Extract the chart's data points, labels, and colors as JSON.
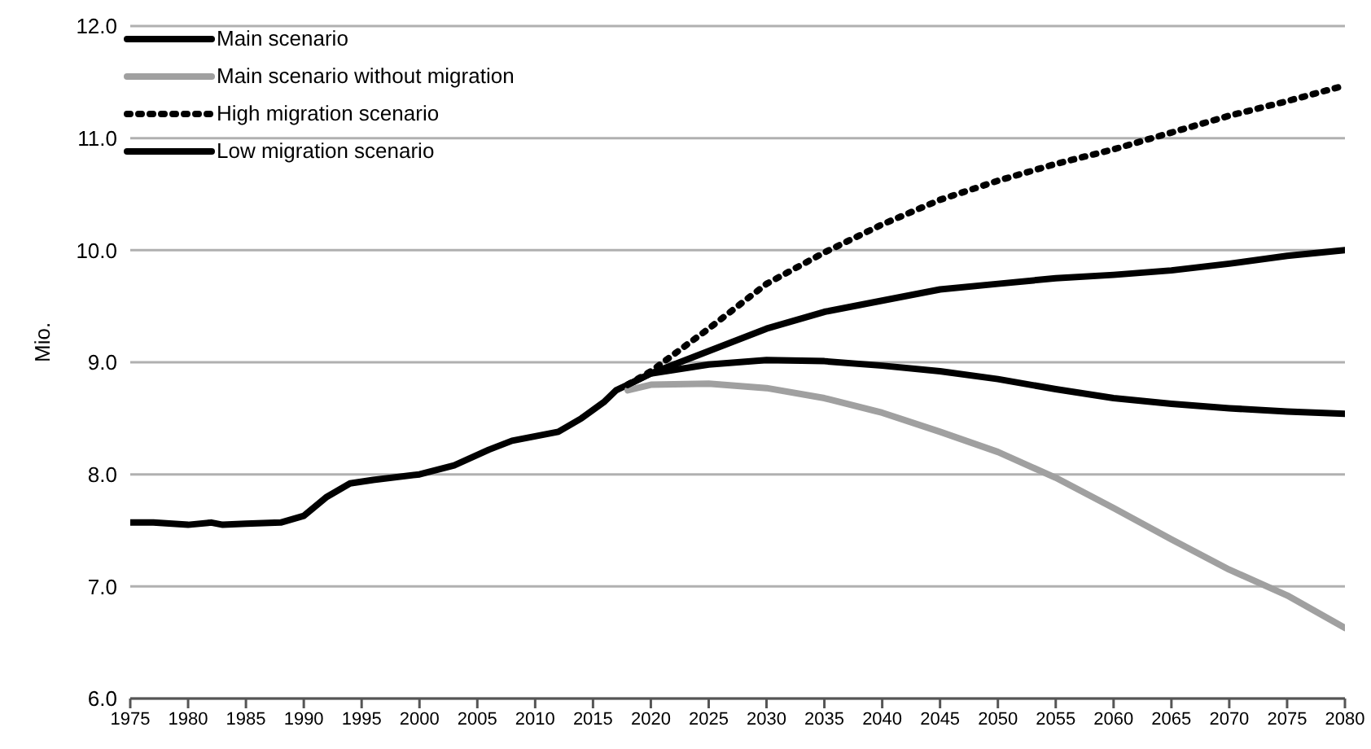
{
  "chart_data": {
    "type": "line",
    "ylabel": "Mio.",
    "xlim": [
      1975,
      2080
    ],
    "xticks": [
      1975,
      1980,
      1985,
      1990,
      1995,
      2000,
      2005,
      2010,
      2015,
      2020,
      2025,
      2030,
      2035,
      2040,
      2045,
      2050,
      2055,
      2060,
      2065,
      2070,
      2075,
      2080
    ],
    "ylim": [
      6,
      12
    ],
    "yticks": [
      {
        "value": 6,
        "label": "6.0"
      },
      {
        "value": 7,
        "label": "7.0"
      },
      {
        "value": 8,
        "label": "8.0"
      },
      {
        "value": 9,
        "label": "9.0"
      },
      {
        "value": 10,
        "label": "10.0"
      },
      {
        "value": 11,
        "label": "11.0"
      },
      {
        "value": 12,
        "label": "12.0"
      }
    ],
    "grid": "y",
    "legend": "top left",
    "marker": "none",
    "series": [
      {
        "name": "Main scenario",
        "color": "#000000",
        "line_style": "solid",
        "x": [
          1975,
          1977,
          1980,
          1982,
          1983,
          1985,
          1988,
          1990,
          1992,
          1994,
          1996,
          2000,
          2003,
          2006,
          2008,
          2012,
          2014,
          2016,
          2017,
          2018,
          2020,
          2025,
          2030,
          2035,
          2040,
          2045,
          2050,
          2055,
          2060,
          2065,
          2070,
          2075,
          2080
        ],
        "values": [
          7.57,
          7.57,
          7.55,
          7.57,
          7.55,
          7.56,
          7.57,
          7.63,
          7.8,
          7.92,
          7.95,
          8.0,
          8.08,
          8.22,
          8.3,
          8.38,
          8.5,
          8.65,
          8.75,
          8.8,
          8.9,
          9.1,
          9.3,
          9.45,
          9.55,
          9.65,
          9.7,
          9.75,
          9.78,
          9.82,
          9.88,
          9.95,
          10.0
        ]
      },
      {
        "name": "Main scenario without migration",
        "color": "#a0a0a0",
        "line_style": "solid",
        "x": [
          2018,
          2020,
          2025,
          2030,
          2035,
          2040,
          2045,
          2050,
          2055,
          2060,
          2065,
          2070,
          2075,
          2080
        ],
        "values": [
          8.75,
          8.8,
          8.81,
          8.77,
          8.68,
          8.55,
          8.38,
          8.2,
          7.97,
          7.7,
          7.42,
          7.15,
          6.92,
          6.63
        ]
      },
      {
        "name": "High migration scenario",
        "color": "#000000",
        "line_style": "dotted",
        "x": [
          2018,
          2020,
          2025,
          2030,
          2035,
          2040,
          2045,
          2050,
          2055,
          2060,
          2065,
          2070,
          2075,
          2080
        ],
        "values": [
          8.8,
          8.92,
          9.3,
          9.7,
          9.98,
          10.23,
          10.45,
          10.62,
          10.77,
          10.9,
          11.05,
          11.2,
          11.33,
          11.47
        ]
      },
      {
        "name": "Low migration scenario",
        "color": "#000000",
        "line_style": "solid",
        "x": [
          2018,
          2020,
          2025,
          2030,
          2035,
          2040,
          2045,
          2050,
          2055,
          2060,
          2065,
          2070,
          2075,
          2080
        ],
        "values": [
          8.8,
          8.9,
          8.98,
          9.02,
          9.01,
          8.97,
          8.92,
          8.85,
          8.76,
          8.68,
          8.63,
          8.59,
          8.56,
          8.54
        ]
      }
    ]
  }
}
